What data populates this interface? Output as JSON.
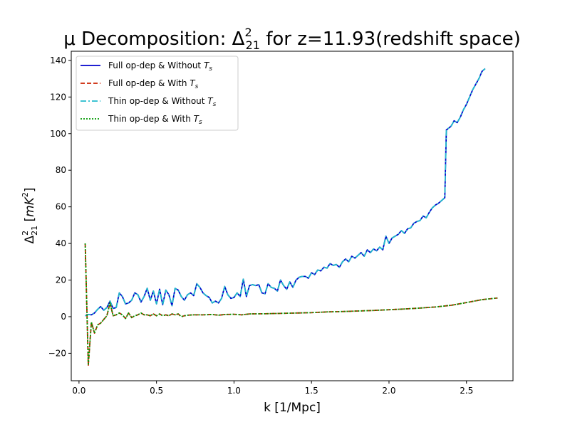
{
  "chart_data": {
    "type": "line",
    "title_prefix": "μ Decomposition: Δ",
    "title_sup": "2",
    "title_sub": "21",
    "title_suffix": " for z=11.93(redshift space)",
    "xlabel": "k [1/Mpc]",
    "ylabel_base": "Δ",
    "ylabel_sup": "2",
    "ylabel_sub": "21",
    "ylabel_unit_open": " [",
    "ylabel_unit_var": "mK",
    "ylabel_unit_sup": "2",
    "ylabel_unit_close": "]",
    "xlim": [
      -0.05,
      2.8
    ],
    "ylim": [
      -35,
      145
    ],
    "xticks": [
      0.0,
      0.5,
      1.0,
      1.5,
      2.0,
      2.5
    ],
    "xtick_labels": [
      "0.0",
      "0.5",
      "1.0",
      "1.5",
      "2.0",
      "2.5"
    ],
    "yticks": [
      -20,
      0,
      20,
      40,
      60,
      80,
      100,
      120,
      140
    ],
    "ytick_labels": [
      "−20",
      "0",
      "20",
      "40",
      "60",
      "80",
      "100",
      "120",
      "140"
    ],
    "legend_position": "top-left",
    "series": [
      {
        "name_prefix": "Full op-dep & Without ",
        "name_var": "T",
        "name_sub": "s",
        "color": "#0000cc",
        "dash": "solid",
        "data": "A"
      },
      {
        "name_prefix": "Full op-dep & With ",
        "name_var": "T",
        "name_sub": "s",
        "color": "#cc2200",
        "dash": "dashed",
        "data": "B"
      },
      {
        "name_prefix": "Thin op-dep & Without ",
        "name_var": "T",
        "name_sub": "s",
        "color": "#22bbcc",
        "dash": "dashdot",
        "data": "A"
      },
      {
        "name_prefix": "Thin op-dep & With ",
        "name_var": "T",
        "name_sub": "s",
        "color": "#009900",
        "dash": "dotted",
        "data": "B"
      }
    ],
    "curves": {
      "A": [
        [
          0.04,
          0.5
        ],
        [
          0.06,
          1.2
        ],
        [
          0.08,
          1.0
        ],
        [
          0.1,
          2.0
        ],
        [
          0.12,
          4.0
        ],
        [
          0.14,
          5.5
        ],
        [
          0.16,
          3.5
        ],
        [
          0.18,
          5.0
        ],
        [
          0.2,
          8.5
        ],
        [
          0.22,
          4.5
        ],
        [
          0.24,
          5.0
        ],
        [
          0.26,
          13.0
        ],
        [
          0.28,
          11.0
        ],
        [
          0.3,
          7.0
        ],
        [
          0.32,
          7.5
        ],
        [
          0.34,
          9.0
        ],
        [
          0.36,
          13.0
        ],
        [
          0.38,
          12.0
        ],
        [
          0.4,
          8.0
        ],
        [
          0.42,
          11.0
        ],
        [
          0.44,
          15.5
        ],
        [
          0.46,
          9.0
        ],
        [
          0.48,
          14.0
        ],
        [
          0.5,
          7.0
        ],
        [
          0.52,
          15.0
        ],
        [
          0.54,
          6.5
        ],
        [
          0.56,
          14.5
        ],
        [
          0.58,
          12.0
        ],
        [
          0.6,
          6.0
        ],
        [
          0.62,
          15.5
        ],
        [
          0.64,
          14.5
        ],
        [
          0.66,
          11.0
        ],
        [
          0.68,
          9.0
        ],
        [
          0.7,
          12.0
        ],
        [
          0.72,
          13.0
        ],
        [
          0.74,
          11.5
        ],
        [
          0.76,
          18.0
        ],
        [
          0.78,
          16.0
        ],
        [
          0.8,
          13.0
        ],
        [
          0.82,
          11.5
        ],
        [
          0.84,
          10.5
        ],
        [
          0.86,
          7.5
        ],
        [
          0.88,
          8.5
        ],
        [
          0.9,
          7.5
        ],
        [
          0.92,
          10.0
        ],
        [
          0.94,
          16.5
        ],
        [
          0.96,
          12.0
        ],
        [
          0.98,
          10.0
        ],
        [
          1.0,
          10.5
        ],
        [
          1.02,
          13.0
        ],
        [
          1.04,
          11.0
        ],
        [
          1.06,
          20.5
        ],
        [
          1.08,
          11.0
        ],
        [
          1.1,
          17.0
        ],
        [
          1.12,
          17.5
        ],
        [
          1.14,
          17.0
        ],
        [
          1.16,
          17.5
        ],
        [
          1.18,
          13.0
        ],
        [
          1.2,
          12.5
        ],
        [
          1.22,
          18.0
        ],
        [
          1.24,
          16.0
        ],
        [
          1.26,
          15.5
        ],
        [
          1.28,
          14.0
        ],
        [
          1.3,
          20.0
        ],
        [
          1.32,
          17.0
        ],
        [
          1.34,
          15.0
        ],
        [
          1.36,
          19.0
        ],
        [
          1.38,
          16.0
        ],
        [
          1.4,
          20.0
        ],
        [
          1.42,
          21.5
        ],
        [
          1.44,
          22.0
        ],
        [
          1.46,
          22.0
        ],
        [
          1.48,
          21.0
        ],
        [
          1.5,
          24.0
        ],
        [
          1.52,
          23.0
        ],
        [
          1.54,
          25.5
        ],
        [
          1.56,
          25.0
        ],
        [
          1.58,
          27.0
        ],
        [
          1.6,
          26.5
        ],
        [
          1.62,
          29.0
        ],
        [
          1.64,
          28.0
        ],
        [
          1.66,
          28.5
        ],
        [
          1.68,
          27.0
        ],
        [
          1.7,
          30.0
        ],
        [
          1.72,
          31.5
        ],
        [
          1.74,
          30.0
        ],
        [
          1.76,
          33.0
        ],
        [
          1.78,
          32.0
        ],
        [
          1.8,
          33.5
        ],
        [
          1.82,
          35.0
        ],
        [
          1.84,
          33.0
        ],
        [
          1.86,
          36.5
        ],
        [
          1.88,
          35.0
        ],
        [
          1.9,
          37.0
        ],
        [
          1.92,
          36.0
        ],
        [
          1.94,
          38.0
        ],
        [
          1.96,
          36.5
        ],
        [
          1.98,
          44.0
        ],
        [
          2.0,
          40.0
        ],
        [
          2.02,
          43.0
        ],
        [
          2.04,
          44.0
        ],
        [
          2.06,
          45.0
        ],
        [
          2.08,
          47.0
        ],
        [
          2.1,
          45.5
        ],
        [
          2.12,
          48.0
        ],
        [
          2.14,
          48.5
        ],
        [
          2.16,
          51.0
        ],
        [
          2.18,
          52.0
        ],
        [
          2.2,
          52.5
        ],
        [
          2.22,
          55.0
        ],
        [
          2.24,
          54.0
        ],
        [
          2.26,
          57.0
        ],
        [
          2.28,
          59.5
        ],
        [
          2.3,
          61.0
        ],
        [
          2.32,
          62.0
        ],
        [
          2.34,
          63.5
        ],
        [
          2.36,
          65.0
        ],
        [
          2.37,
          102.0
        ],
        [
          2.4,
          104.0
        ],
        [
          2.42,
          107.0
        ],
        [
          2.44,
          106.0
        ],
        [
          2.46,
          109.0
        ],
        [
          2.48,
          113.0
        ],
        [
          2.5,
          116.0
        ],
        [
          2.52,
          120.0
        ],
        [
          2.54,
          124.0
        ],
        [
          2.56,
          127.0
        ],
        [
          2.58,
          130.0
        ],
        [
          2.6,
          134.0
        ],
        [
          2.62,
          135.5
        ]
      ],
      "B": [
        [
          0.04,
          40.0
        ],
        [
          0.06,
          -26.5
        ],
        [
          0.08,
          -3.0
        ],
        [
          0.1,
          -9.0
        ],
        [
          0.12,
          -4.5
        ],
        [
          0.14,
          -3.5
        ],
        [
          0.16,
          -1.5
        ],
        [
          0.18,
          0.5
        ],
        [
          0.2,
          7.5
        ],
        [
          0.22,
          0.5
        ],
        [
          0.24,
          1.0
        ],
        [
          0.26,
          2.0
        ],
        [
          0.28,
          1.0
        ],
        [
          0.3,
          -1.0
        ],
        [
          0.32,
          2.0
        ],
        [
          0.34,
          -0.5
        ],
        [
          0.36,
          0.5
        ],
        [
          0.38,
          1.0
        ],
        [
          0.4,
          2.0
        ],
        [
          0.42,
          1.0
        ],
        [
          0.44,
          1.0
        ],
        [
          0.46,
          0.5
        ],
        [
          0.48,
          1.5
        ],
        [
          0.5,
          0.5
        ],
        [
          0.52,
          1.5
        ],
        [
          0.54,
          0.5
        ],
        [
          0.56,
          1.0
        ],
        [
          0.58,
          0.5
        ],
        [
          0.6,
          1.5
        ],
        [
          0.62,
          1.0
        ],
        [
          0.64,
          1.5
        ],
        [
          0.66,
          0.0
        ],
        [
          0.68,
          0.5
        ],
        [
          0.7,
          0.8
        ],
        [
          0.74,
          1.0
        ],
        [
          0.8,
          1.0
        ],
        [
          0.86,
          1.2
        ],
        [
          0.9,
          0.8
        ],
        [
          0.94,
          1.2
        ],
        [
          1.0,
          1.3
        ],
        [
          1.05,
          1.0
        ],
        [
          1.1,
          1.5
        ],
        [
          1.2,
          1.6
        ],
        [
          1.3,
          1.8
        ],
        [
          1.4,
          2.0
        ],
        [
          1.5,
          2.2
        ],
        [
          1.6,
          2.6
        ],
        [
          1.7,
          2.8
        ],
        [
          1.8,
          3.1
        ],
        [
          1.9,
          3.4
        ],
        [
          2.0,
          3.8
        ],
        [
          2.1,
          4.2
        ],
        [
          2.2,
          4.7
        ],
        [
          2.3,
          5.3
        ],
        [
          2.4,
          6.2
        ],
        [
          2.5,
          7.7
        ],
        [
          2.6,
          9.3
        ],
        [
          2.7,
          10.2
        ]
      ]
    }
  }
}
